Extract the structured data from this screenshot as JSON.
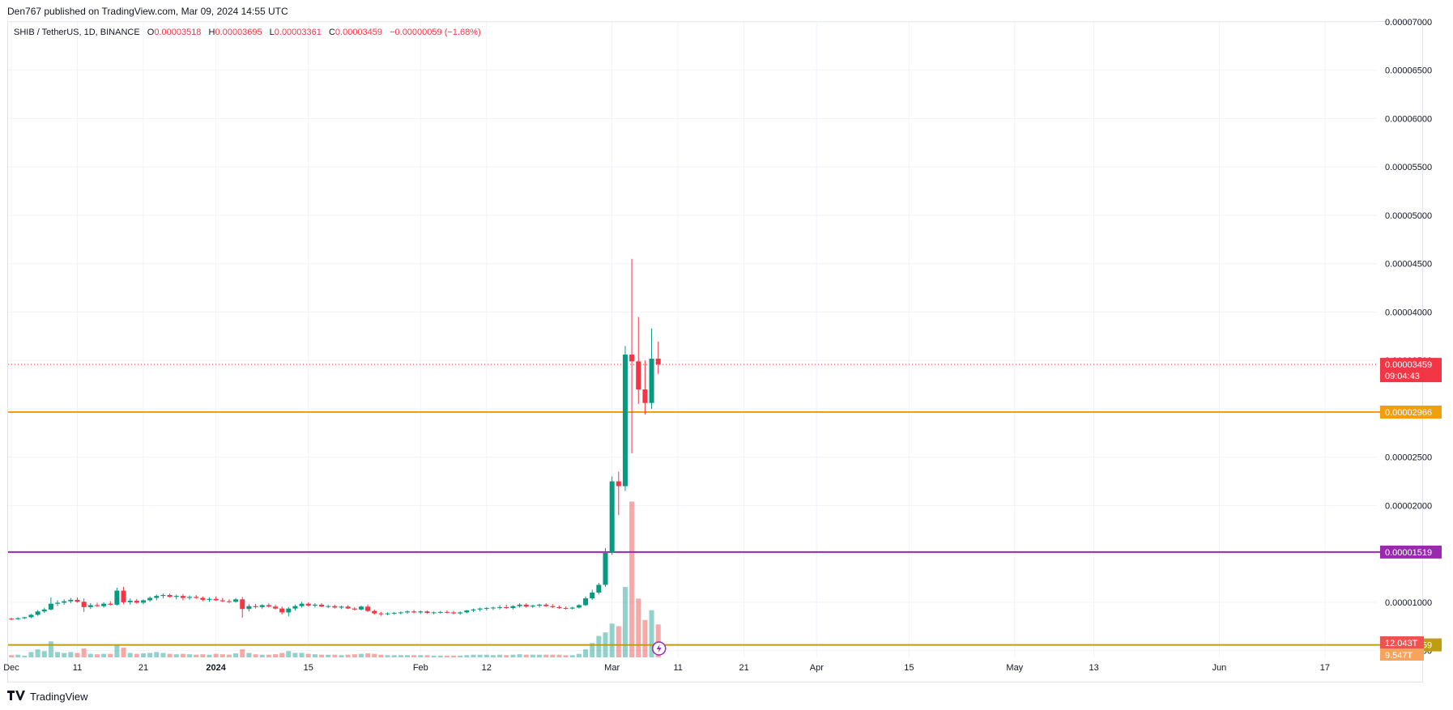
{
  "header": {
    "published_by": "Den767 published on TradingView.com, Mar 09, 2024 14:55 UTC"
  },
  "legend": {
    "symbol": "SHIB / TetherUS, 1D, BINANCE",
    "open_label": "O",
    "open": "0.00003518",
    "high_label": "H",
    "high": "0.00003695",
    "low_label": "L",
    "low": "0.00003361",
    "close_label": "C",
    "close": "0.00003459",
    "change": "−0.00000059 (−1.68%)"
  },
  "footer": {
    "brand": "TradingView",
    "logo_icon": "tradingview-logo-icon"
  },
  "chart_data": {
    "type": "candlestick",
    "y_axis": {
      "ticks": [
        "0.00007000",
        "0.00006500",
        "0.00006000",
        "0.00005500",
        "0.00005000",
        "0.00004500",
        "0.00004000",
        "0.00003500",
        "0.00003000",
        "0.00002500",
        "0.00002000",
        "0.00001500",
        "0.00001000",
        "0.00000500"
      ],
      "ylim": [
        4.3e-06,
        7e-05
      ]
    },
    "x_axis": {
      "ticks": [
        {
          "label": "Dec",
          "bold": false,
          "day": 0
        },
        {
          "label": "11",
          "bold": false,
          "day": 10
        },
        {
          "label": "21",
          "bold": false,
          "day": 20
        },
        {
          "label": "2024",
          "bold": true,
          "day": 31
        },
        {
          "label": "15",
          "bold": false,
          "day": 45
        },
        {
          "label": "Feb",
          "bold": false,
          "day": 62
        },
        {
          "label": "12",
          "bold": false,
          "day": 72
        },
        {
          "label": "Mar",
          "bold": false,
          "day": 91
        },
        {
          "label": "11",
          "bold": false,
          "day": 101
        },
        {
          "label": "21",
          "bold": false,
          "day": 111
        },
        {
          "label": "Apr",
          "bold": false,
          "day": 122
        },
        {
          "label": "15",
          "bold": false,
          "day": 136
        },
        {
          "label": "May",
          "bold": false,
          "day": 152
        },
        {
          "label": "13",
          "bold": false,
          "day": 164
        },
        {
          "label": "Jun",
          "bold": false,
          "day": 183
        },
        {
          "label": "17",
          "bold": false,
          "day": 199
        }
      ]
    },
    "horizontal_levels": [
      {
        "value": 2.966e-05,
        "label": "0.00002966",
        "color": "#f59d0d"
      },
      {
        "value": 1.519e-05,
        "label": "0.00001519",
        "color": "#9c27b0"
      },
      {
        "value": 5.59e-06,
        "label": "0.00000559",
        "color": "#c09d0f"
      }
    ],
    "last_price": {
      "value": 3.459e-05,
      "label": "0.00003459",
      "countdown": "09:04:43",
      "color": "#f23645"
    },
    "volume_labels": [
      {
        "label": "12.043T",
        "color": "#ef5350"
      },
      {
        "label": "9.547T",
        "color": "#f7a35c"
      }
    ],
    "candles": [
      {
        "o": 8.3e-06,
        "h": 8.4e-06,
        "l": 8.15e-06,
        "c": 8.25e-06,
        "v": 0.25
      },
      {
        "o": 8.25e-06,
        "h": 8.45e-06,
        "l": 8.18e-06,
        "c": 8.35e-06,
        "v": 0.3
      },
      {
        "o": 8.35e-06,
        "h": 8.5e-06,
        "l": 8.25e-06,
        "c": 8.45e-06,
        "v": 0.2
      },
      {
        "o": 8.45e-06,
        "h": 8.8e-06,
        "l": 8.35e-06,
        "c": 8.7e-06,
        "v": 0.6
      },
      {
        "o": 8.7e-06,
        "h": 9.2e-06,
        "l": 8.6e-06,
        "c": 9.05e-06,
        "v": 0.9
      },
      {
        "o": 9.05e-06,
        "h": 9.4e-06,
        "l": 8.9e-06,
        "c": 9.25e-06,
        "v": 0.7
      },
      {
        "o": 9.25e-06,
        "h": 1.05e-05,
        "l": 9.15e-06,
        "c": 9.85e-06,
        "v": 1.8
      },
      {
        "o": 9.85e-06,
        "h": 1.02e-05,
        "l": 9.6e-06,
        "c": 9.95e-06,
        "v": 0.6
      },
      {
        "o": 9.95e-06,
        "h": 1.03e-05,
        "l": 9.75e-06,
        "c": 1.01e-05,
        "v": 0.5
      },
      {
        "o": 1.01e-05,
        "h": 1.045e-05,
        "l": 9.9e-06,
        "c": 1.025e-05,
        "v": 0.6
      },
      {
        "o": 1.025e-05,
        "h": 1.05e-05,
        "l": 9.95e-06,
        "c": 1.005e-05,
        "v": 0.5
      },
      {
        "o": 1.005e-05,
        "h": 1.04e-05,
        "l": 9e-06,
        "c": 9.5e-06,
        "v": 1.0
      },
      {
        "o": 9.5e-06,
        "h": 9.9e-06,
        "l": 9.3e-06,
        "c": 9.7e-06,
        "v": 0.4
      },
      {
        "o": 9.7e-06,
        "h": 9.95e-06,
        "l": 9.5e-06,
        "c": 9.6e-06,
        "v": 0.35
      },
      {
        "o": 9.6e-06,
        "h": 1e-05,
        "l": 9.45e-06,
        "c": 9.85e-06,
        "v": 0.4
      },
      {
        "o": 9.85e-06,
        "h": 1.01e-05,
        "l": 9.65e-06,
        "c": 9.75e-06,
        "v": 0.4
      },
      {
        "o": 9.75e-06,
        "h": 1.15e-05,
        "l": 9.65e-06,
        "c": 1.12e-05,
        "v": 1.4
      },
      {
        "o": 1.12e-05,
        "h": 1.16e-05,
        "l": 9.8e-06,
        "c": 1e-05,
        "v": 1.1
      },
      {
        "o": 1e-05,
        "h": 1.04e-05,
        "l": 9.75e-06,
        "c": 1.015e-05,
        "v": 0.5
      },
      {
        "o": 1.015e-05,
        "h": 1.035e-05,
        "l": 9.85e-06,
        "c": 9.95e-06,
        "v": 0.4
      },
      {
        "o": 9.95e-06,
        "h": 1.03e-05,
        "l": 9.8e-06,
        "c": 1.02e-05,
        "v": 0.45
      },
      {
        "o": 1.02e-05,
        "h": 1.06e-05,
        "l": 1.005e-05,
        "c": 1.045e-05,
        "v": 0.5
      },
      {
        "o": 1.045e-05,
        "h": 1.08e-05,
        "l": 1.02e-05,
        "c": 1.065e-05,
        "v": 0.6
      },
      {
        "o": 1.065e-05,
        "h": 1.09e-05,
        "l": 1.04e-05,
        "c": 1.075e-05,
        "v": 0.5
      },
      {
        "o": 1.075e-05,
        "h": 1.09e-05,
        "l": 1.045e-05,
        "c": 1.055e-05,
        "v": 0.4
      },
      {
        "o": 1.055e-05,
        "h": 1.08e-05,
        "l": 1.03e-05,
        "c": 1.065e-05,
        "v": 0.35
      },
      {
        "o": 1.065e-05,
        "h": 1.085e-05,
        "l": 1.02e-05,
        "c": 1.045e-05,
        "v": 0.4
      },
      {
        "o": 1.045e-05,
        "h": 1.07e-05,
        "l": 1.025e-05,
        "c": 1.055e-05,
        "v": 0.35
      },
      {
        "o": 1.055e-05,
        "h": 1.075e-05,
        "l": 1.035e-05,
        "c": 1.045e-05,
        "v": 0.3
      },
      {
        "o": 1.045e-05,
        "h": 1.06e-05,
        "l": 1.01e-05,
        "c": 1.025e-05,
        "v": 0.35
      },
      {
        "o": 1.025e-05,
        "h": 1.05e-05,
        "l": 1.005e-05,
        "c": 1.035e-05,
        "v": 0.3
      },
      {
        "o": 1.035e-05,
        "h": 1.06e-05,
        "l": 1.015e-05,
        "c": 1.02e-05,
        "v": 0.4
      },
      {
        "o": 1.02e-05,
        "h": 1.045e-05,
        "l": 1e-05,
        "c": 1.01e-05,
        "v": 0.35
      },
      {
        "o": 1.01e-05,
        "h": 1.03e-05,
        "l": 9.9e-06,
        "c": 1.005e-05,
        "v": 0.3
      },
      {
        "o": 1.005e-05,
        "h": 1.045e-05,
        "l": 9.95e-06,
        "c": 1.03e-05,
        "v": 0.45
      },
      {
        "o": 1.03e-05,
        "h": 1.055e-05,
        "l": 8.4e-06,
        "c": 9.3e-06,
        "v": 0.9
      },
      {
        "o": 9.3e-06,
        "h": 9.8e-06,
        "l": 9.05e-06,
        "c": 9.6e-06,
        "v": 0.5
      },
      {
        "o": 9.6e-06,
        "h": 9.85e-06,
        "l": 9.35e-06,
        "c": 9.5e-06,
        "v": 0.35
      },
      {
        "o": 9.5e-06,
        "h": 9.8e-06,
        "l": 9.3e-06,
        "c": 9.7e-06,
        "v": 0.3
      },
      {
        "o": 9.7e-06,
        "h": 9.9e-06,
        "l": 9.45e-06,
        "c": 9.55e-06,
        "v": 0.3
      },
      {
        "o": 9.55e-06,
        "h": 9.75e-06,
        "l": 9.25e-06,
        "c": 9.35e-06,
        "v": 0.35
      },
      {
        "o": 9.35e-06,
        "h": 9.55e-06,
        "l": 8.75e-06,
        "c": 8.95e-06,
        "v": 0.5
      },
      {
        "o": 8.95e-06,
        "h": 9.5e-06,
        "l": 8.55e-06,
        "c": 9.35e-06,
        "v": 0.7
      },
      {
        "o": 9.35e-06,
        "h": 9.75e-06,
        "l": 9.15e-06,
        "c": 9.6e-06,
        "v": 0.5
      },
      {
        "o": 9.6e-06,
        "h": 1.005e-05,
        "l": 9.45e-06,
        "c": 9.85e-06,
        "v": 0.5
      },
      {
        "o": 9.85e-06,
        "h": 1e-05,
        "l": 9.55e-06,
        "c": 9.65e-06,
        "v": 0.4
      },
      {
        "o": 9.65e-06,
        "h": 9.9e-06,
        "l": 9.45e-06,
        "c": 9.75e-06,
        "v": 0.35
      },
      {
        "o": 9.75e-06,
        "h": 9.9e-06,
        "l": 9.5e-06,
        "c": 9.55e-06,
        "v": 0.3
      },
      {
        "o": 9.55e-06,
        "h": 9.75e-06,
        "l": 9.4e-06,
        "c": 9.6e-06,
        "v": 0.3
      },
      {
        "o": 9.6e-06,
        "h": 9.75e-06,
        "l": 9.35e-06,
        "c": 9.45e-06,
        "v": 0.3
      },
      {
        "o": 9.45e-06,
        "h": 9.65e-06,
        "l": 9.3e-06,
        "c": 9.55e-06,
        "v": 0.25
      },
      {
        "o": 9.55e-06,
        "h": 9.7e-06,
        "l": 9.3e-06,
        "c": 9.35e-06,
        "v": 0.3
      },
      {
        "o": 9.35e-06,
        "h": 9.5e-06,
        "l": 9.15e-06,
        "c": 9.25e-06,
        "v": 0.35
      },
      {
        "o": 9.25e-06,
        "h": 9.65e-06,
        "l": 9.15e-06,
        "c": 9.55e-06,
        "v": 0.4
      },
      {
        "o": 9.55e-06,
        "h": 9.75e-06,
        "l": 9e-06,
        "c": 9.1e-06,
        "v": 0.45
      },
      {
        "o": 9.1e-06,
        "h": 9.25e-06,
        "l": 8.7e-06,
        "c": 8.85e-06,
        "v": 0.4
      },
      {
        "o": 8.85e-06,
        "h": 9e-06,
        "l": 8.6e-06,
        "c": 8.8e-06,
        "v": 0.3
      },
      {
        "o": 8.8e-06,
        "h": 8.95e-06,
        "l": 8.65e-06,
        "c": 8.85e-06,
        "v": 0.25
      },
      {
        "o": 8.85e-06,
        "h": 9e-06,
        "l": 8.7e-06,
        "c": 8.9e-06,
        "v": 0.25
      },
      {
        "o": 8.9e-06,
        "h": 9.05e-06,
        "l": 8.75e-06,
        "c": 8.95e-06,
        "v": 0.25
      },
      {
        "o": 8.95e-06,
        "h": 9.15e-06,
        "l": 8.8e-06,
        "c": 9.05e-06,
        "v": 0.25
      },
      {
        "o": 9.05e-06,
        "h": 9.2e-06,
        "l": 8.85e-06,
        "c": 8.95e-06,
        "v": 0.25
      },
      {
        "o": 8.95e-06,
        "h": 9.15e-06,
        "l": 8.8e-06,
        "c": 9.05e-06,
        "v": 0.25
      },
      {
        "o": 9.05e-06,
        "h": 9.15e-06,
        "l": 8.8e-06,
        "c": 8.9e-06,
        "v": 0.25
      },
      {
        "o": 8.9e-06,
        "h": 9.05e-06,
        "l": 8.75e-06,
        "c": 8.95e-06,
        "v": 0.2
      },
      {
        "o": 8.95e-06,
        "h": 9.1e-06,
        "l": 8.8e-06,
        "c": 9e-06,
        "v": 0.2
      },
      {
        "o": 9e-06,
        "h": 9.15e-06,
        "l": 8.85e-06,
        "c": 8.95e-06,
        "v": 0.2
      },
      {
        "o": 8.95e-06,
        "h": 9.1e-06,
        "l": 8.75e-06,
        "c": 8.85e-06,
        "v": 0.2
      },
      {
        "o": 8.85e-06,
        "h": 9.05e-06,
        "l": 8.7e-06,
        "c": 8.95e-06,
        "v": 0.2
      },
      {
        "o": 8.95e-06,
        "h": 9.2e-06,
        "l": 8.85e-06,
        "c": 9.15e-06,
        "v": 0.25
      },
      {
        "o": 9.15e-06,
        "h": 9.35e-06,
        "l": 9e-06,
        "c": 9.25e-06,
        "v": 0.3
      },
      {
        "o": 9.25e-06,
        "h": 9.45e-06,
        "l": 9.05e-06,
        "c": 9.35e-06,
        "v": 0.3
      },
      {
        "o": 9.35e-06,
        "h": 9.5e-06,
        "l": 9.15e-06,
        "c": 9.4e-06,
        "v": 0.3
      },
      {
        "o": 9.4e-06,
        "h": 9.55e-06,
        "l": 9.2e-06,
        "c": 9.45e-06,
        "v": 0.25
      },
      {
        "o": 9.45e-06,
        "h": 9.7e-06,
        "l": 9.25e-06,
        "c": 9.5e-06,
        "v": 0.3
      },
      {
        "o": 9.5e-06,
        "h": 9.75e-06,
        "l": 9.3e-06,
        "c": 9.4e-06,
        "v": 0.25
      },
      {
        "o": 9.4e-06,
        "h": 9.7e-06,
        "l": 9.25e-06,
        "c": 9.6e-06,
        "v": 0.3
      },
      {
        "o": 9.6e-06,
        "h": 9.9e-06,
        "l": 9.45e-06,
        "c": 9.75e-06,
        "v": 0.35
      },
      {
        "o": 9.75e-06,
        "h": 9.9e-06,
        "l": 9.45e-06,
        "c": 9.55e-06,
        "v": 0.3
      },
      {
        "o": 9.55e-06,
        "h": 9.75e-06,
        "l": 9.4e-06,
        "c": 9.65e-06,
        "v": 0.3
      },
      {
        "o": 9.65e-06,
        "h": 9.85e-06,
        "l": 9.45e-06,
        "c": 9.75e-06,
        "v": 0.3
      },
      {
        "o": 9.75e-06,
        "h": 9.9e-06,
        "l": 9.5e-06,
        "c": 9.6e-06,
        "v": 0.3
      },
      {
        "o": 9.6e-06,
        "h": 9.8e-06,
        "l": 9.4e-06,
        "c": 9.5e-06,
        "v": 0.3
      },
      {
        "o": 9.5e-06,
        "h": 9.65e-06,
        "l": 9.3e-06,
        "c": 9.4e-06,
        "v": 0.3
      },
      {
        "o": 9.4e-06,
        "h": 9.55e-06,
        "l": 9.25e-06,
        "c": 9.35e-06,
        "v": 0.25
      },
      {
        "o": 9.35e-06,
        "h": 9.55e-06,
        "l": 9.25e-06,
        "c": 9.45e-06,
        "v": 0.25
      },
      {
        "o": 9.45e-06,
        "h": 9.8e-06,
        "l": 9.35e-06,
        "c": 9.7e-06,
        "v": 0.4
      },
      {
        "o": 9.7e-06,
        "h": 1.06e-05,
        "l": 9.6e-06,
        "c": 1.04e-05,
        "v": 0.9
      },
      {
        "o": 1.04e-05,
        "h": 1.13e-05,
        "l": 1.025e-05,
        "c": 1.1e-05,
        "v": 1.6
      },
      {
        "o": 1.1e-05,
        "h": 1.2e-05,
        "l": 1.08e-05,
        "c": 1.18e-05,
        "v": 2.4
      },
      {
        "o": 1.18e-05,
        "h": 1.56e-05,
        "l": 1.16e-05,
        "c": 1.51e-05,
        "v": 2.8
      },
      {
        "o": 1.51e-05,
        "h": 2.3e-05,
        "l": 1.49e-05,
        "c": 2.25e-05,
        "v": 3.8
      },
      {
        "o": 2.25e-05,
        "h": 2.35e-05,
        "l": 1.9e-05,
        "c": 2.2e-05,
        "v": 3.5
      },
      {
        "o": 2.2e-05,
        "h": 3.65e-05,
        "l": 2.15e-05,
        "c": 3.56e-05,
        "v": 7.9
      },
      {
        "o": 3.56e-05,
        "h": 4.55e-05,
        "l": 2.54e-05,
        "c": 3.49e-05,
        "v": 17.5
      },
      {
        "o": 3.49e-05,
        "h": 3.95e-05,
        "l": 3.05e-05,
        "c": 3.2e-05,
        "v": 6.6
      },
      {
        "o": 3.2e-05,
        "h": 3.5e-05,
        "l": 2.94e-05,
        "c": 3.06e-05,
        "v": 4.2
      },
      {
        "o": 3.06e-05,
        "h": 3.83e-05,
        "l": 3e-05,
        "c": 3.518e-05,
        "v": 5.3
      },
      {
        "o": 3.518e-05,
        "h": 3.695e-05,
        "l": 3.361e-05,
        "c": 3.459e-05,
        "v": 3.7
      }
    ]
  }
}
